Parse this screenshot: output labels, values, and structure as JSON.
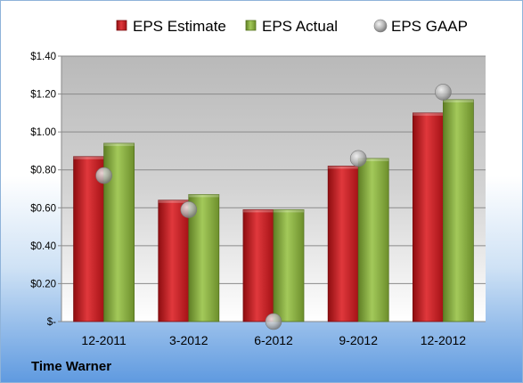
{
  "company": "Time Warner",
  "chart_data": {
    "type": "bar",
    "categories": [
      "12-2011",
      "3-2012",
      "6-2012",
      "9-2012",
      "12-2012"
    ],
    "series": [
      {
        "name": "EPS Estimate",
        "type": "bar",
        "color": "#c0171c",
        "values": [
          0.87,
          0.64,
          0.59,
          0.82,
          1.1
        ]
      },
      {
        "name": "EPS Actual",
        "type": "bar",
        "color": "#7fa33a",
        "values": [
          0.94,
          0.67,
          0.59,
          0.86,
          1.17
        ]
      },
      {
        "name": "EPS GAAP",
        "type": "scatter",
        "color": "#a9a9a9",
        "values": [
          0.77,
          0.59,
          0.0,
          0.86,
          1.21
        ]
      }
    ],
    "y_ticks": [
      "$-",
      "$0.20",
      "$0.40",
      "$0.60",
      "$0.80",
      "$1.00",
      "$1.20",
      "$1.40"
    ],
    "ylim": [
      0,
      1.4
    ],
    "grid": true,
    "legend_position": "top"
  }
}
